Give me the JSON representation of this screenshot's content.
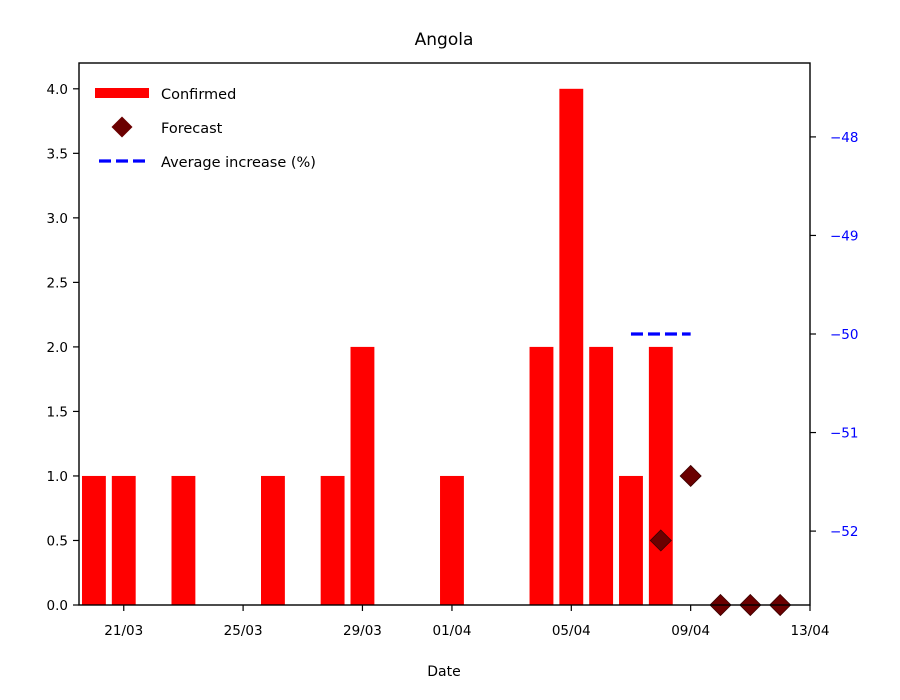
{
  "chart_data": {
    "type": "bar",
    "title": "Angola",
    "xlabel": "Date",
    "ylabel": "",
    "xlim": [
      "19/03",
      "13/04"
    ],
    "ylim": [
      0,
      4.2
    ],
    "y2lim": [
      -52.75,
      -47.25
    ],
    "x_ticks": [
      "21/03",
      "25/03",
      "29/03",
      "01/04",
      "05/04",
      "09/04",
      "13/04"
    ],
    "y_ticks": [
      "0.0",
      "0.5",
      "1.0",
      "1.5",
      "2.0",
      "2.5",
      "3.0",
      "3.5",
      "4.0"
    ],
    "y2_ticks": [
      "−52",
      "−51",
      "−50",
      "−49",
      "−48"
    ],
    "grid": false,
    "legend_position": "top-left",
    "series": [
      {
        "name": "Confirmed",
        "kind": "bar",
        "color": "#ff0000",
        "points": [
          {
            "x": "20/03",
            "y": 1
          },
          {
            "x": "21/03",
            "y": 1
          },
          {
            "x": "23/03",
            "y": 1
          },
          {
            "x": "26/03",
            "y": 1
          },
          {
            "x": "28/03",
            "y": 1
          },
          {
            "x": "29/03",
            "y": 2
          },
          {
            "x": "01/04",
            "y": 1
          },
          {
            "x": "04/04",
            "y": 2
          },
          {
            "x": "05/04",
            "y": 4
          },
          {
            "x": "06/04",
            "y": 2
          },
          {
            "x": "07/04",
            "y": 1
          },
          {
            "x": "08/04",
            "y": 2
          }
        ]
      },
      {
        "name": "Forecast",
        "kind": "scatter",
        "marker": "diamond",
        "color": "#6b0000",
        "points": [
          {
            "x": "08/04",
            "y": 0.5
          },
          {
            "x": "09/04",
            "y": 1
          },
          {
            "x": "10/04",
            "y": 0
          },
          {
            "x": "11/04",
            "y": 0
          },
          {
            "x": "12/04",
            "y": 0
          }
        ]
      },
      {
        "name": "Average increase (%)",
        "kind": "line",
        "style": "dashed",
        "axis": "right",
        "color": "#0000ff",
        "points": [
          {
            "x": "07/04",
            "y": -50
          },
          {
            "x": "09/04",
            "y": -50
          }
        ]
      }
    ]
  }
}
